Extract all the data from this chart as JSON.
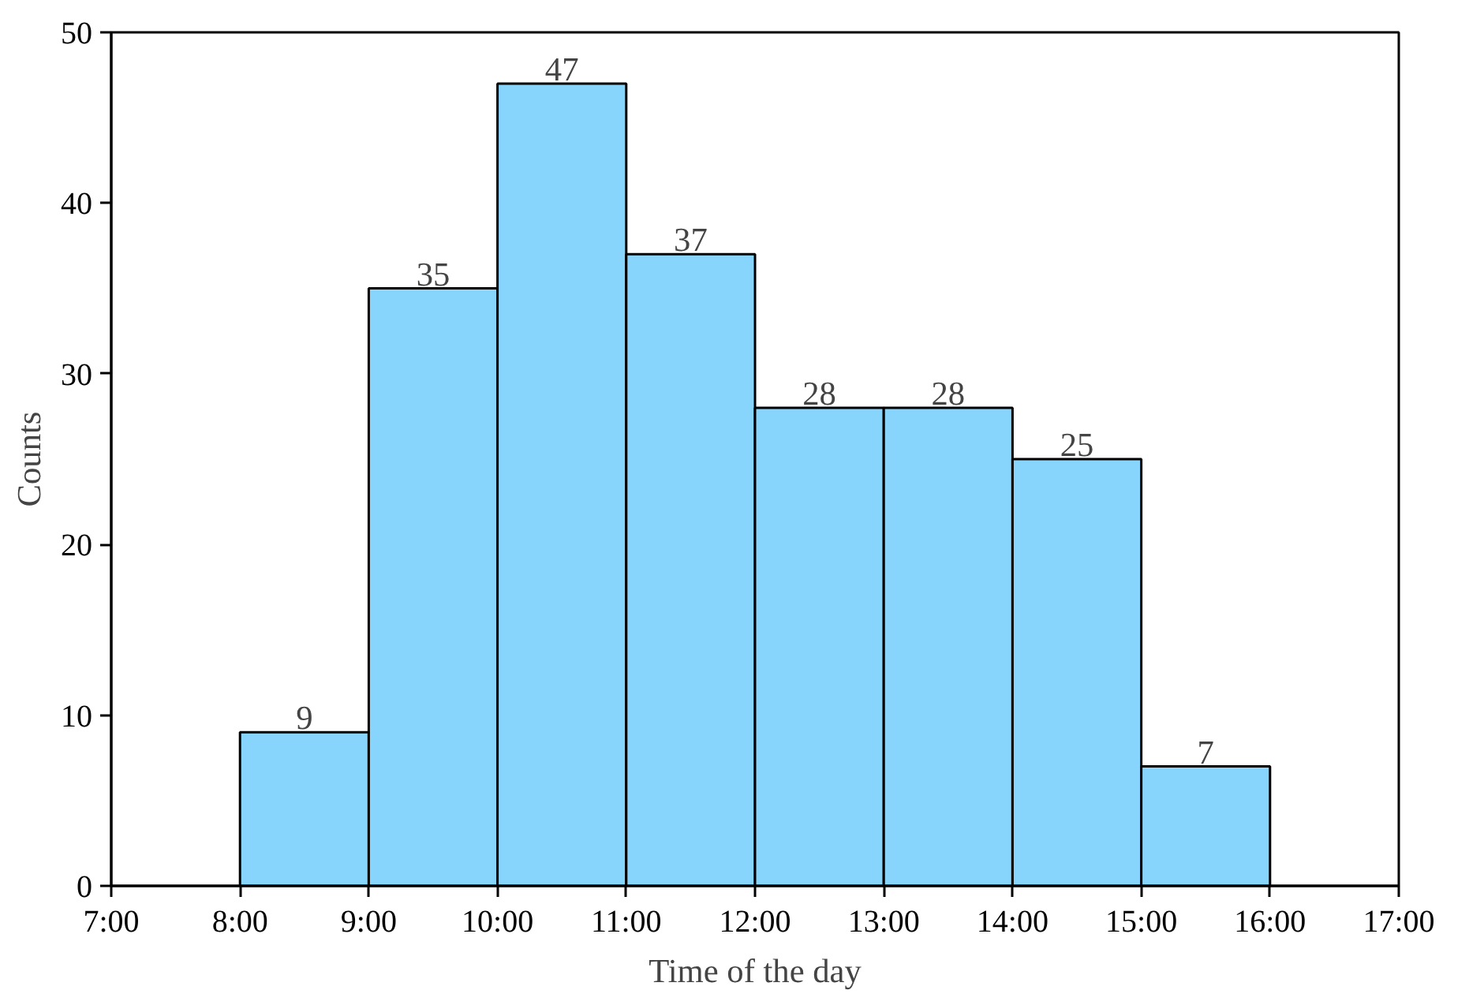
{
  "chart_data": {
    "type": "histogram",
    "xlabel": "Time of the day",
    "ylabel": "Counts",
    "bins": [
      8,
      9,
      10,
      11,
      12,
      13,
      14,
      15,
      16
    ],
    "values": [
      9,
      35,
      47,
      37,
      28,
      28,
      25,
      7
    ],
    "color": "#87d4fc",
    "data_labels": true,
    "grid": false,
    "xlim": [
      7,
      17
    ],
    "xticks": [
      {
        "value": 7,
        "label": "7:00"
      },
      {
        "value": 8,
        "label": "8:00"
      },
      {
        "value": 9,
        "label": "9:00"
      },
      {
        "value": 10,
        "label": "10:00"
      },
      {
        "value": 11,
        "label": "11:00"
      },
      {
        "value": 12,
        "label": "12:00"
      },
      {
        "value": 13,
        "label": "13:00"
      },
      {
        "value": 14,
        "label": "14:00"
      },
      {
        "value": 15,
        "label": "15:00"
      },
      {
        "value": 16,
        "label": "16:00"
      },
      {
        "value": 17,
        "label": "17:00"
      }
    ],
    "ylim": [
      0,
      50
    ],
    "yticks": [
      0,
      10,
      20,
      30,
      40,
      50
    ]
  }
}
